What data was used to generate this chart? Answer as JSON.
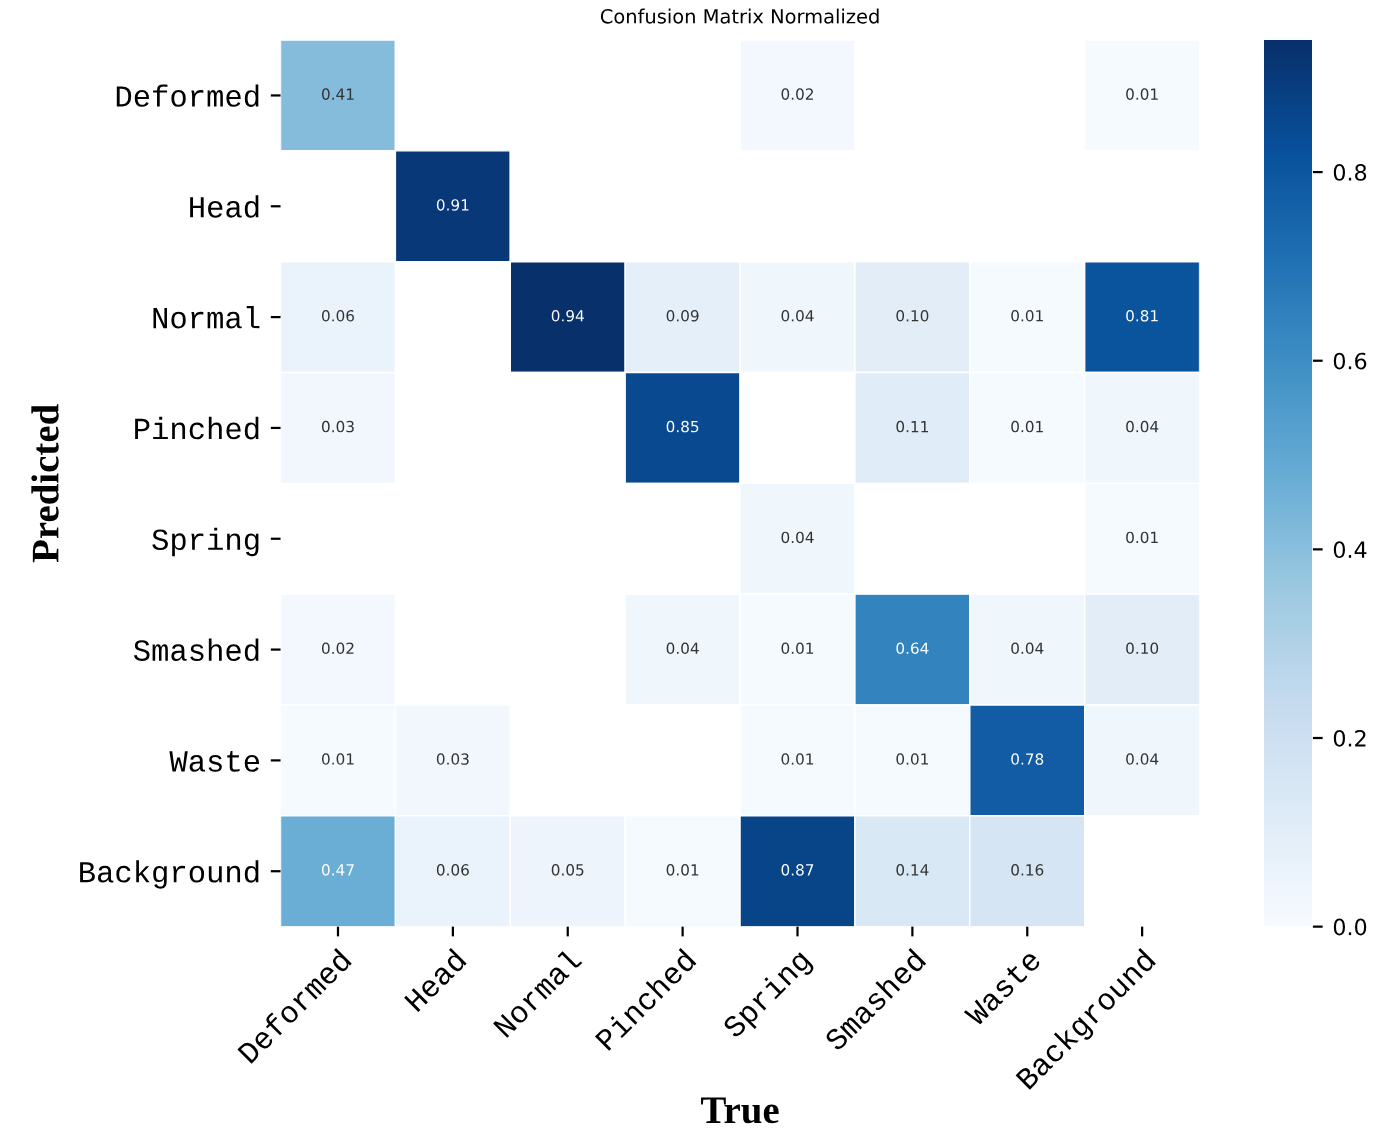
{
  "chart_data": {
    "type": "heatmap",
    "title": "Confusion Matrix Normalized",
    "xlabel": "True",
    "ylabel": "Predicted",
    "categories": [
      "Deformed",
      "Head",
      "Normal",
      "Pinched",
      "Spring",
      "Smashed",
      "Waste",
      "Background"
    ],
    "y_categories": [
      "Deformed",
      "Head",
      "Normal",
      "Pinched",
      "Spring",
      "Smashed",
      "Waste",
      "Background"
    ],
    "cells": [
      [
        0.41,
        null,
        null,
        null,
        0.02,
        null,
        null,
        0.01
      ],
      [
        null,
        0.91,
        null,
        null,
        null,
        null,
        null,
        null
      ],
      [
        0.06,
        null,
        0.94,
        0.09,
        0.04,
        0.1,
        0.01,
        0.81
      ],
      [
        0.03,
        null,
        null,
        0.85,
        null,
        0.11,
        0.01,
        0.04
      ],
      [
        null,
        null,
        null,
        null,
        0.04,
        null,
        null,
        0.01
      ],
      [
        0.02,
        null,
        null,
        0.04,
        0.01,
        0.64,
        0.04,
        0.1
      ],
      [
        0.01,
        0.03,
        null,
        null,
        0.01,
        0.01,
        0.78,
        0.04
      ],
      [
        0.47,
        0.06,
        0.05,
        0.01,
        0.87,
        0.14,
        0.16,
        null
      ]
    ],
    "cell_labels": [
      [
        "0.41",
        null,
        null,
        null,
        "0.02",
        null,
        null,
        "0.01"
      ],
      [
        null,
        "0.91",
        null,
        null,
        null,
        null,
        null,
        null
      ],
      [
        "0.06",
        null,
        "0.94",
        "0.09",
        "0.04",
        "0.10",
        "0.01",
        "0.81"
      ],
      [
        "0.03",
        null,
        null,
        "0.85",
        null,
        "0.11",
        "0.01",
        "0.04"
      ],
      [
        null,
        null,
        null,
        null,
        "0.04",
        null,
        null,
        "0.01"
      ],
      [
        "0.02",
        null,
        null,
        "0.04",
        "0.01",
        "0.64",
        "0.04",
        "0.10"
      ],
      [
        "0.01",
        "0.03",
        null,
        null,
        "0.01",
        "0.01",
        "0.78",
        "0.04"
      ],
      [
        "0.47",
        "0.06",
        "0.05",
        "0.01",
        "0.87",
        "0.14",
        "0.16",
        null
      ]
    ],
    "clim": [
      0,
      0.94
    ],
    "cticks": [
      {
        "value": 0,
        "label": "0.0"
      },
      {
        "value": 0.2,
        "label": "0.2"
      },
      {
        "value": 0.4,
        "label": "0.4"
      },
      {
        "value": 0.6,
        "label": "0.6"
      },
      {
        "value": 0.8,
        "label": "0.8"
      }
    ]
  }
}
